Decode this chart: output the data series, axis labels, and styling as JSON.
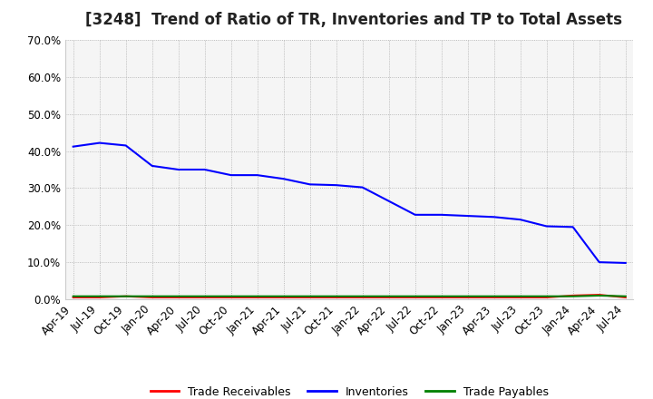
{
  "title": "[3248]  Trend of Ratio of TR, Inventories and TP to Total Assets",
  "title_fontsize": 12,
  "background_color": "#ffffff",
  "plot_bg_color": "#f5f5f5",
  "grid_color": "#aaaaaa",
  "xlabel": "",
  "ylabel": "",
  "ylim": [
    0.0,
    0.7
  ],
  "yticks": [
    0.0,
    0.1,
    0.2,
    0.3,
    0.4,
    0.5,
    0.6,
    0.7
  ],
  "x_labels": [
    "Apr-19",
    "Jul-19",
    "Oct-19",
    "Jan-20",
    "Apr-20",
    "Jul-20",
    "Oct-20",
    "Jan-21",
    "Apr-21",
    "Jul-21",
    "Oct-21",
    "Jan-22",
    "Apr-22",
    "Jul-22",
    "Oct-22",
    "Jan-23",
    "Apr-23",
    "Jul-23",
    "Oct-23",
    "Jan-24",
    "Apr-24",
    "Jul-24"
  ],
  "inventories": [
    0.412,
    0.422,
    0.415,
    0.36,
    0.35,
    0.35,
    0.335,
    0.335,
    0.325,
    0.31,
    0.308,
    0.302,
    0.265,
    0.228,
    0.228,
    0.225,
    0.222,
    0.215,
    0.197,
    0.195,
    0.1,
    0.098
  ],
  "trade_receivables": [
    0.005,
    0.005,
    0.008,
    0.005,
    0.005,
    0.005,
    0.005,
    0.005,
    0.005,
    0.005,
    0.005,
    0.005,
    0.005,
    0.005,
    0.005,
    0.005,
    0.005,
    0.005,
    0.005,
    0.01,
    0.012,
    0.005
  ],
  "trade_payables": [
    0.008,
    0.008,
    0.008,
    0.008,
    0.008,
    0.008,
    0.008,
    0.008,
    0.008,
    0.008,
    0.008,
    0.008,
    0.008,
    0.008,
    0.008,
    0.008,
    0.008,
    0.008,
    0.008,
    0.008,
    0.01,
    0.008
  ],
  "inventories_color": "#0000ff",
  "trade_receivables_color": "#ff0000",
  "trade_payables_color": "#008000",
  "line_width": 1.5,
  "legend_fontsize": 9,
  "tick_fontsize": 8.5
}
